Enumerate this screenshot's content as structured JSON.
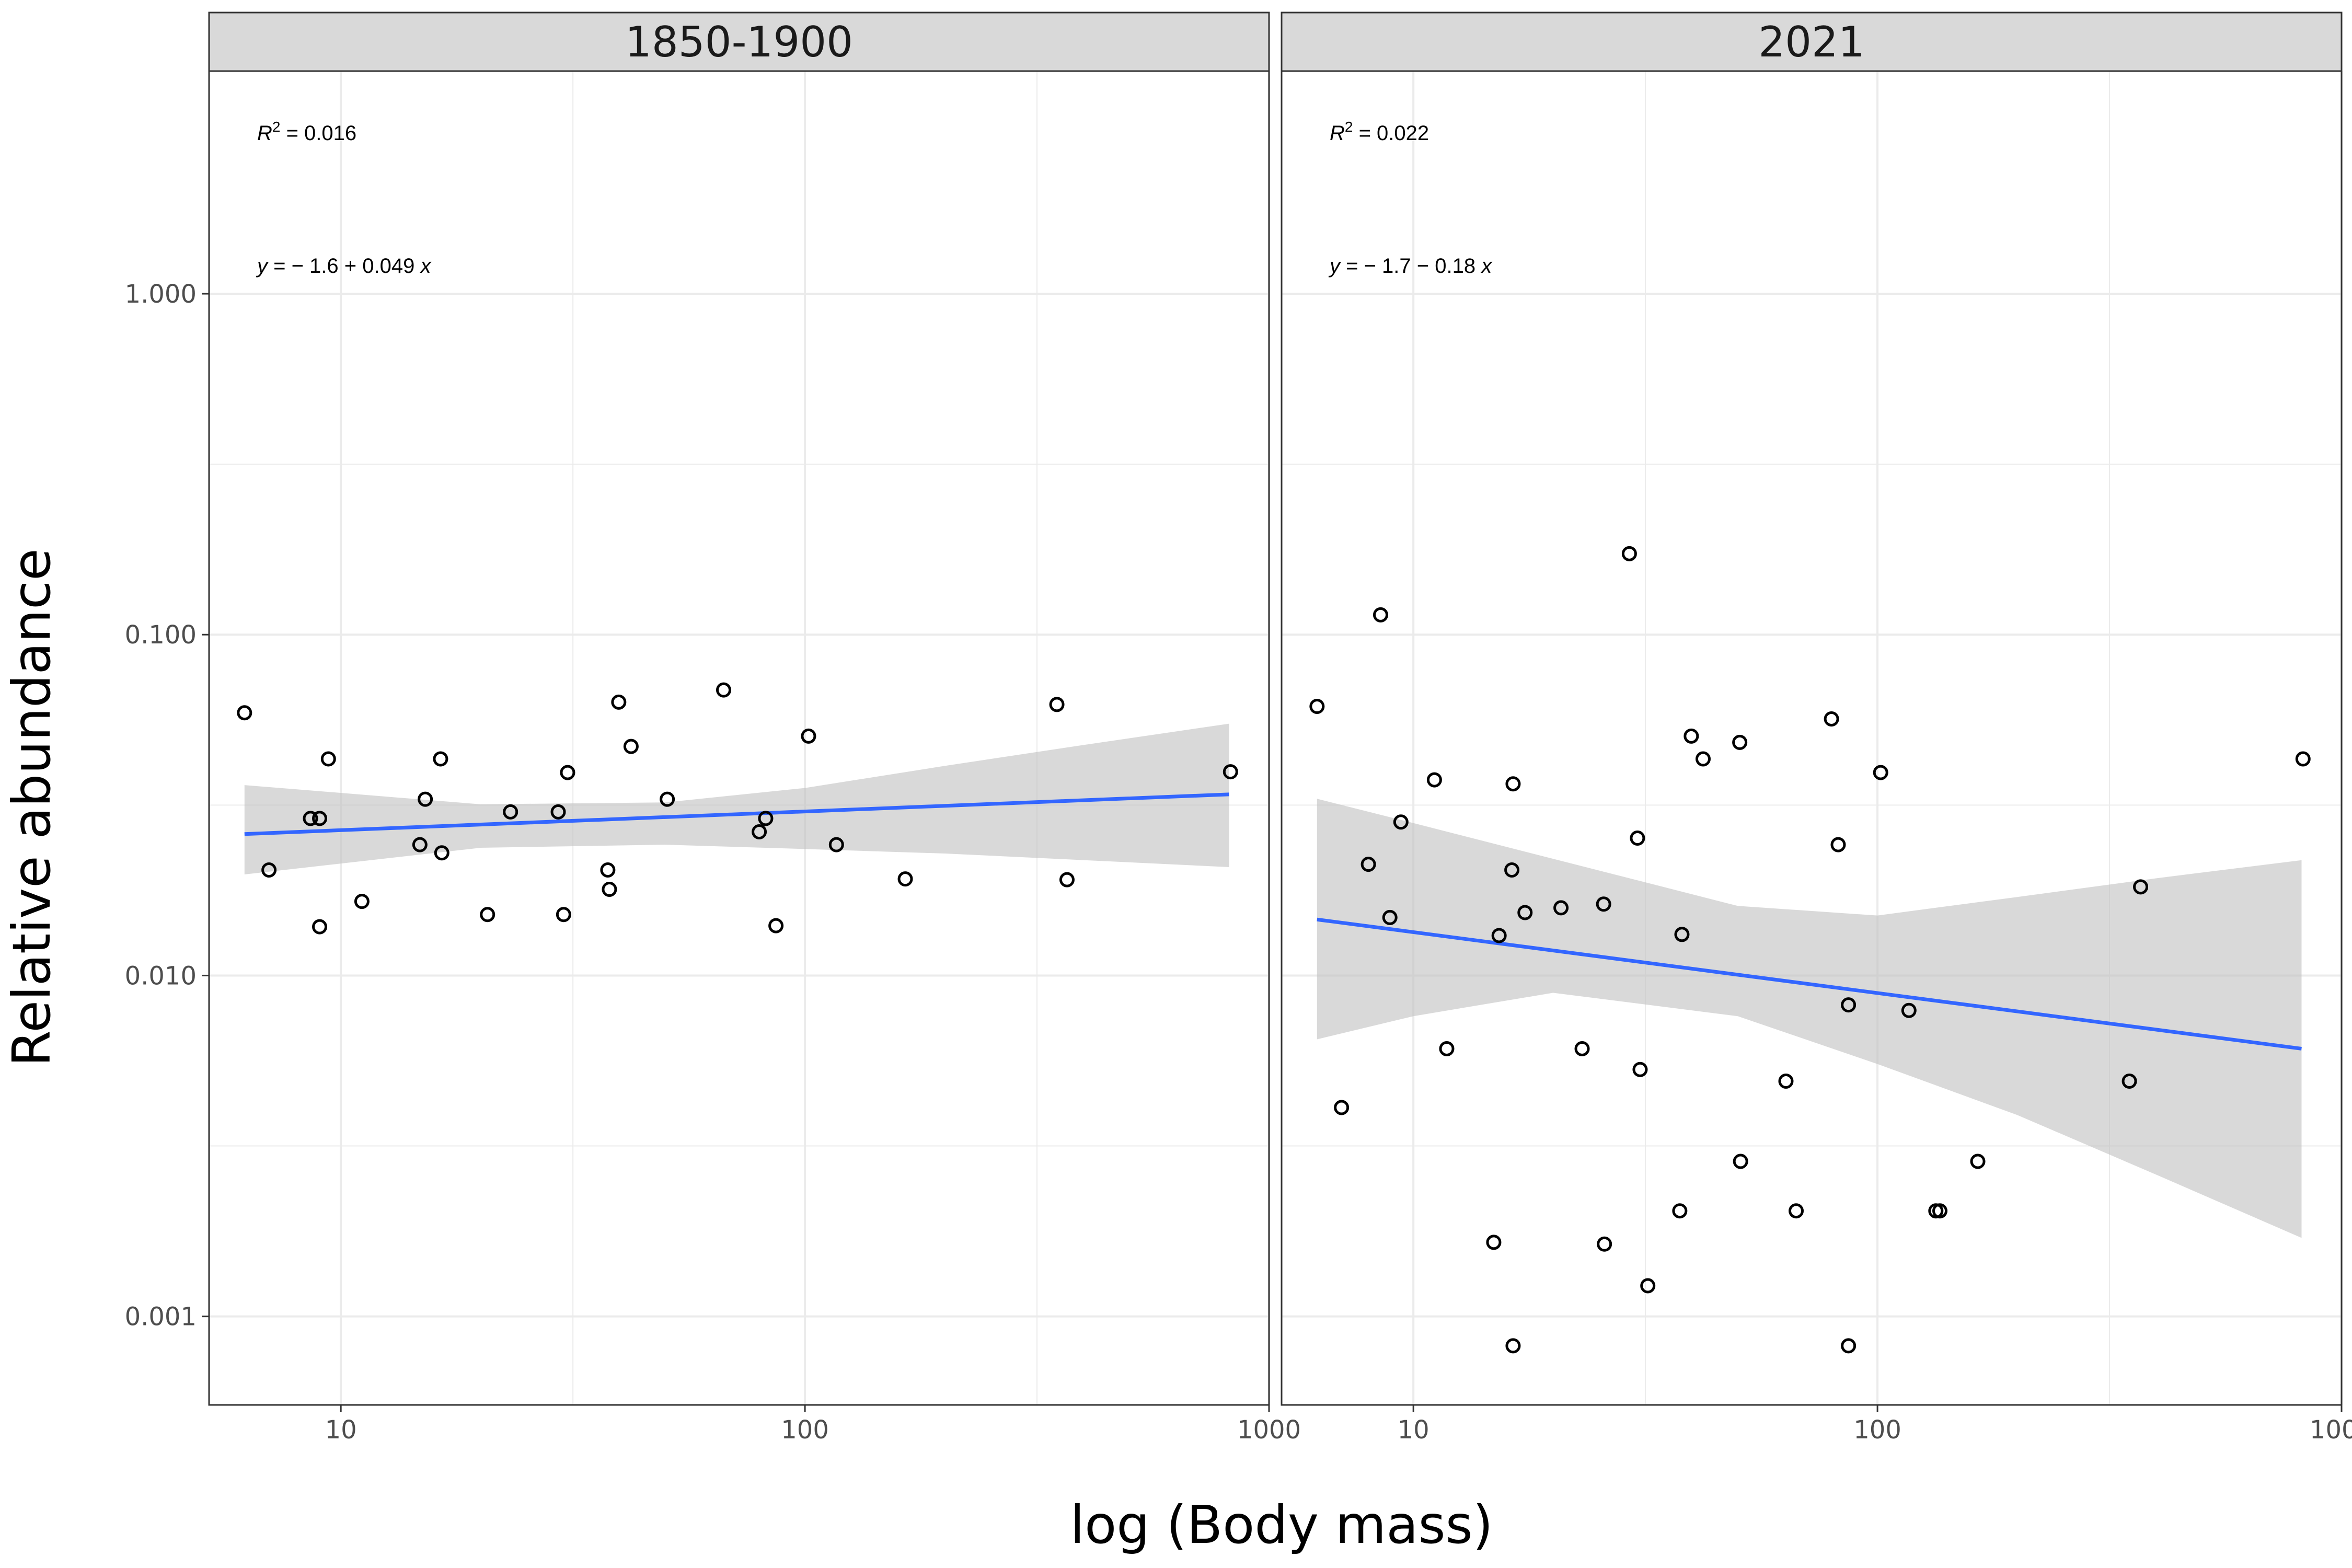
{
  "chart_data": {
    "type": "scatter",
    "xlabel": "log (Body mass)",
    "ylabel": "Relative abundance",
    "x_scale": "log10",
    "y_scale": "log10",
    "xlim": [
      5.2,
      1000
    ],
    "ylim": [
      0.00055,
      4.5
    ],
    "x_ticks": [
      10,
      100,
      1000
    ],
    "x_tick_labels": [
      "10",
      "100",
      "1000"
    ],
    "y_ticks": [
      0.001,
      0.01,
      0.1,
      1
    ],
    "y_tick_labels": [
      "0.001",
      "0.010",
      "0.100",
      "1.000"
    ],
    "grid": true,
    "legend": "none",
    "colors": {
      "points_stroke": "#000000",
      "fit_line": "#3366ff",
      "confidence_band": "#bfbfbf",
      "strip_fill": "#d9d9d9",
      "grid": "#ebebeb",
      "panel_border": "#333333"
    },
    "panels": [
      {
        "title": "1850-1900",
        "r2_label": "= 0.016",
        "eq_label": "= − 1.6 + 0.049",
        "fit": {
          "x": [
            6.2,
            820
          ],
          "y": [
            0.026,
            0.034
          ],
          "band_x": [
            6.2,
            20,
            50,
            100,
            200,
            400,
            820
          ],
          "band_lower": [
            0.0198,
            0.0237,
            0.0242,
            0.0235,
            0.0228,
            0.0218,
            0.0208
          ],
          "band_upper": [
            0.0362,
            0.0318,
            0.0322,
            0.0355,
            0.0412,
            0.0475,
            0.0548
          ]
        },
        "points": [
          {
            "x": 6.2,
            "y": 0.059
          },
          {
            "x": 7.0,
            "y": 0.0204
          },
          {
            "x": 8.6,
            "y": 0.0289
          },
          {
            "x": 9.0,
            "y": 0.0289
          },
          {
            "x": 9.0,
            "y": 0.0139
          },
          {
            "x": 9.4,
            "y": 0.0432
          },
          {
            "x": 11.1,
            "y": 0.0165
          },
          {
            "x": 14.8,
            "y": 0.0242
          },
          {
            "x": 15.2,
            "y": 0.0329
          },
          {
            "x": 16.4,
            "y": 0.0432
          },
          {
            "x": 16.5,
            "y": 0.0229
          },
          {
            "x": 20.7,
            "y": 0.0151
          },
          {
            "x": 23.2,
            "y": 0.0302
          },
          {
            "x": 29.4,
            "y": 0.0302
          },
          {
            "x": 30.2,
            "y": 0.0151
          },
          {
            "x": 30.8,
            "y": 0.0394
          },
          {
            "x": 37.6,
            "y": 0.0204
          },
          {
            "x": 37.9,
            "y": 0.0179
          },
          {
            "x": 39.7,
            "y": 0.0634
          },
          {
            "x": 42.2,
            "y": 0.047
          },
          {
            "x": 50.5,
            "y": 0.0329
          },
          {
            "x": 66.8,
            "y": 0.0688
          },
          {
            "x": 79.7,
            "y": 0.0264
          },
          {
            "x": 82.3,
            "y": 0.0289
          },
          {
            "x": 86.6,
            "y": 0.014
          },
          {
            "x": 101.8,
            "y": 0.0504
          },
          {
            "x": 116.9,
            "y": 0.0242
          },
          {
            "x": 164.5,
            "y": 0.0192
          },
          {
            "x": 349,
            "y": 0.0624
          },
          {
            "x": 367,
            "y": 0.0191
          },
          {
            "x": 826,
            "y": 0.0396
          }
        ]
      },
      {
        "title": "2021",
        "r2_label": "= 0.022",
        "eq_label": "= − 1.7 − 0.18",
        "fit": {
          "x": [
            6.2,
            820
          ],
          "y": [
            0.0146,
            0.0061
          ],
          "band_x": [
            6.2,
            10,
            20,
            50,
            100,
            200,
            400,
            820
          ],
          "band_lower": [
            0.0065,
            0.0076,
            0.0089,
            0.0076,
            0.0055,
            0.0039,
            0.0026,
            0.0017
          ],
          "band_upper": [
            0.033,
            0.028,
            0.022,
            0.016,
            0.015,
            0.017,
            0.0193,
            0.0218
          ]
        },
        "points": [
          {
            "x": 6.2,
            "y": 0.0616
          },
          {
            "x": 7.0,
            "y": 0.0041
          },
          {
            "x": 8.0,
            "y": 0.0212
          },
          {
            "x": 8.5,
            "y": 0.1143
          },
          {
            "x": 8.9,
            "y": 0.0148
          },
          {
            "x": 9.4,
            "y": 0.0282
          },
          {
            "x": 11.1,
            "y": 0.0375
          },
          {
            "x": 11.8,
            "y": 0.0061
          },
          {
            "x": 14.9,
            "y": 0.00165
          },
          {
            "x": 15.3,
            "y": 0.0131
          },
          {
            "x": 16.3,
            "y": 0.0204
          },
          {
            "x": 16.4,
            "y": 0.0365
          },
          {
            "x": 16.4,
            "y": 0.00082
          },
          {
            "x": 17.4,
            "y": 0.0153
          },
          {
            "x": 20.8,
            "y": 0.0158
          },
          {
            "x": 23.1,
            "y": 0.0061
          },
          {
            "x": 25.7,
            "y": 0.0162
          },
          {
            "x": 25.8,
            "y": 0.00163
          },
          {
            "x": 29.2,
            "y": 0.1728
          },
          {
            "x": 30.4,
            "y": 0.0253
          },
          {
            "x": 30.8,
            "y": 0.0053
          },
          {
            "x": 32.0,
            "y": 0.00123
          },
          {
            "x": 37.5,
            "y": 0.00204
          },
          {
            "x": 37.9,
            "y": 0.0132
          },
          {
            "x": 39.7,
            "y": 0.0504
          },
          {
            "x": 42.1,
            "y": 0.0432
          },
          {
            "x": 50.5,
            "y": 0.0483
          },
          {
            "x": 50.7,
            "y": 0.00285
          },
          {
            "x": 63.5,
            "y": 0.0049
          },
          {
            "x": 66.8,
            "y": 0.00204
          },
          {
            "x": 79.6,
            "y": 0.0566
          },
          {
            "x": 82.3,
            "y": 0.0242
          },
          {
            "x": 86.6,
            "y": 0.0082
          },
          {
            "x": 86.6,
            "y": 0.00082
          },
          {
            "x": 101.6,
            "y": 0.0394
          },
          {
            "x": 116.9,
            "y": 0.0079
          },
          {
            "x": 133.6,
            "y": 0.00204
          },
          {
            "x": 136.3,
            "y": 0.00204
          },
          {
            "x": 164.5,
            "y": 0.00285
          },
          {
            "x": 349,
            "y": 0.0049
          },
          {
            "x": 369,
            "y": 0.0182
          },
          {
            "x": 826,
            "y": 0.0432
          }
        ]
      }
    ]
  }
}
